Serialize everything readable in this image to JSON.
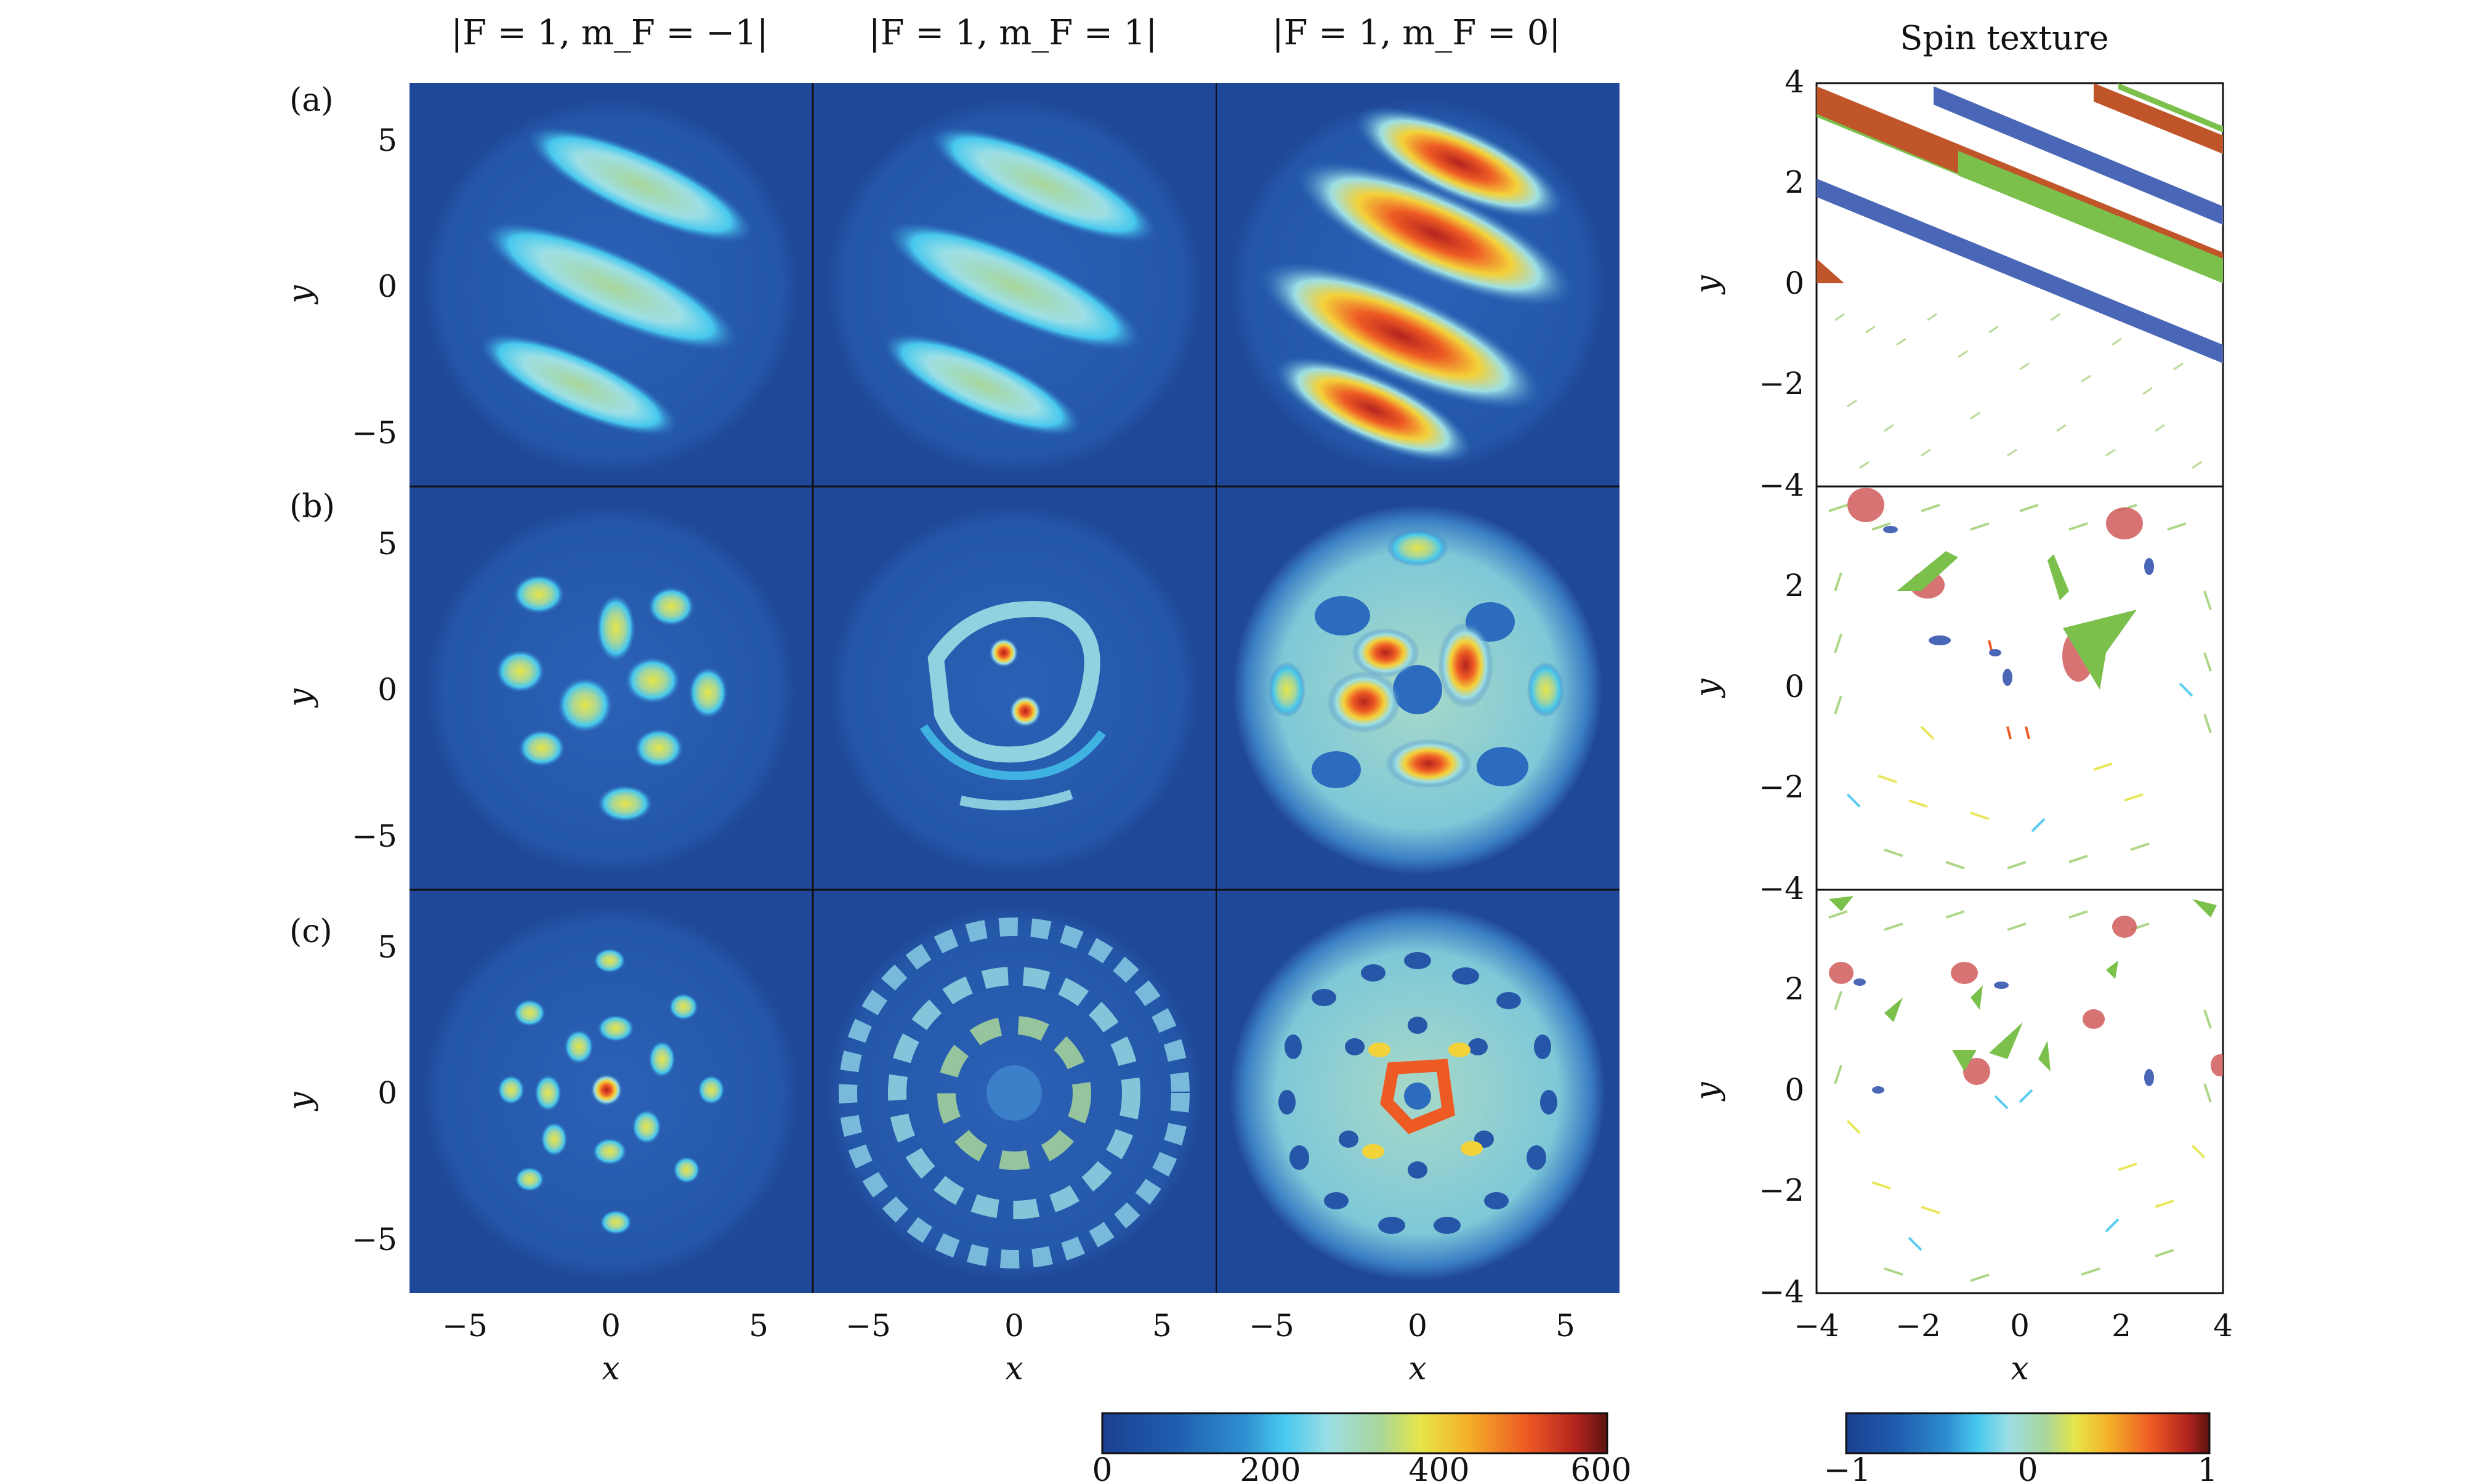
{
  "columns": {
    "m_minus": "|F = 1, m_F = −1|",
    "m_plus": "|F = 1, m_F = 1|",
    "m_zero": "|F = 1, m_F = 0|",
    "spin": "Spin texture"
  },
  "rows": {
    "a": "(a)",
    "b": "(b)",
    "c": "(c)"
  },
  "axes": {
    "xlabel": "x",
    "ylabel": "y",
    "density_ticks": [
      "−5",
      "0",
      "5"
    ],
    "spin_x_ticks": [
      "−4",
      "−2",
      "0",
      "2",
      "4"
    ],
    "spin_y_ticks": [
      "4",
      "2",
      "0",
      "−2",
      "−4"
    ]
  },
  "colorbars": {
    "density": {
      "min": 0,
      "max": 600,
      "ticks": [
        "0",
        "200",
        "400",
        "600"
      ]
    },
    "spin": {
      "min": -1,
      "max": 1,
      "ticks": [
        "−1",
        "0",
        "1"
      ]
    }
  },
  "colors": {
    "jet": [
      "#1b3f91",
      "#1f5fb0",
      "#2f8fd0",
      "#47c8ee",
      "#9ddfe5",
      "#a8d69a",
      "#e6e54a",
      "#f4b329",
      "#ee5a24",
      "#b2231e",
      "#5b1410"
    ],
    "background": "#20489a",
    "domain_red": "#c0552a",
    "domain_blue": "#4a66b6",
    "domain_green": "#7cc04c",
    "arrow_green": "#9acd6a"
  }
}
